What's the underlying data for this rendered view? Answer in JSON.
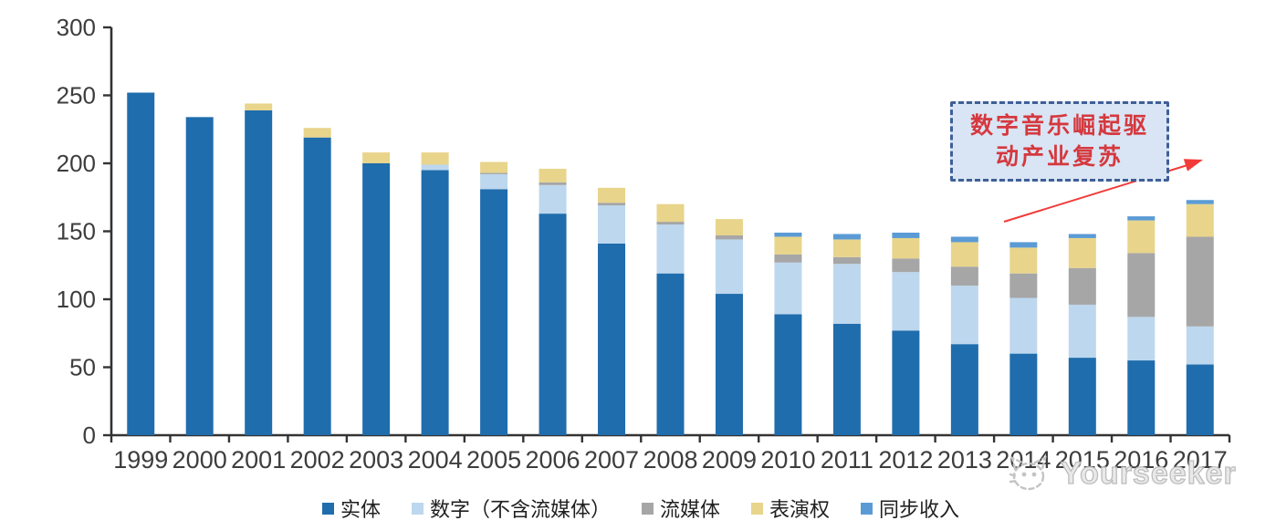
{
  "chart_data": {
    "type": "bar",
    "stacked": true,
    "title": "",
    "xlabel": "",
    "ylabel": "",
    "ylim": [
      0,
      300
    ],
    "yticks": [
      0,
      50,
      100,
      150,
      200,
      250,
      300
    ],
    "grid": false,
    "legend_position": "bottom",
    "categories": [
      "1999",
      "2000",
      "2001",
      "2002",
      "2003",
      "2004",
      "2005",
      "2006",
      "2007",
      "2008",
      "2009",
      "2010",
      "2011",
      "2012",
      "2013",
      "2014",
      "2015",
      "2016",
      "2017"
    ],
    "series": [
      {
        "name": "实体",
        "color": "#1f6dad",
        "values": [
          252,
          234,
          239,
          219,
          200,
          195,
          181,
          163,
          141,
          119,
          104,
          89,
          82,
          77,
          67,
          60,
          57,
          55,
          52
        ]
      },
      {
        "name": "数字（不含流媒体）",
        "color": "#bdd7ee",
        "values": [
          0,
          0,
          0,
          0,
          0,
          4,
          11,
          21,
          28,
          36,
          40,
          38,
          44,
          43,
          43,
          41,
          39,
          32,
          28
        ]
      },
      {
        "name": "流媒体",
        "color": "#a6a6a6",
        "values": [
          0,
          0,
          0,
          0,
          0,
          0,
          1,
          2,
          2,
          2,
          3,
          6,
          5,
          10,
          14,
          18,
          27,
          47,
          66
        ]
      },
      {
        "name": "表演权",
        "color": "#e8d48b",
        "values": [
          0,
          0,
          5,
          7,
          8,
          9,
          8,
          10,
          11,
          13,
          12,
          13,
          13,
          15,
          18,
          19,
          22,
          24,
          24
        ]
      },
      {
        "name": "同步收入",
        "color": "#5b9bd5",
        "values": [
          0,
          0,
          0,
          0,
          0,
          0,
          0,
          0,
          0,
          0,
          0,
          3,
          4,
          4,
          4,
          4,
          3,
          3,
          3
        ]
      }
    ],
    "axis_color": "#333333",
    "tick_label_color": "#3d3d3d"
  },
  "annotation": {
    "line1": "数字音乐崛起驱",
    "line2": "动产业复苏",
    "box_fill": "#d9e5f4",
    "box_border": "#3f5f96",
    "text_color": "#d5383e",
    "arrow_color": "#f23b38"
  },
  "watermark": {
    "brand": "Yourseeker",
    "logo": "cat-logo-icon"
  }
}
